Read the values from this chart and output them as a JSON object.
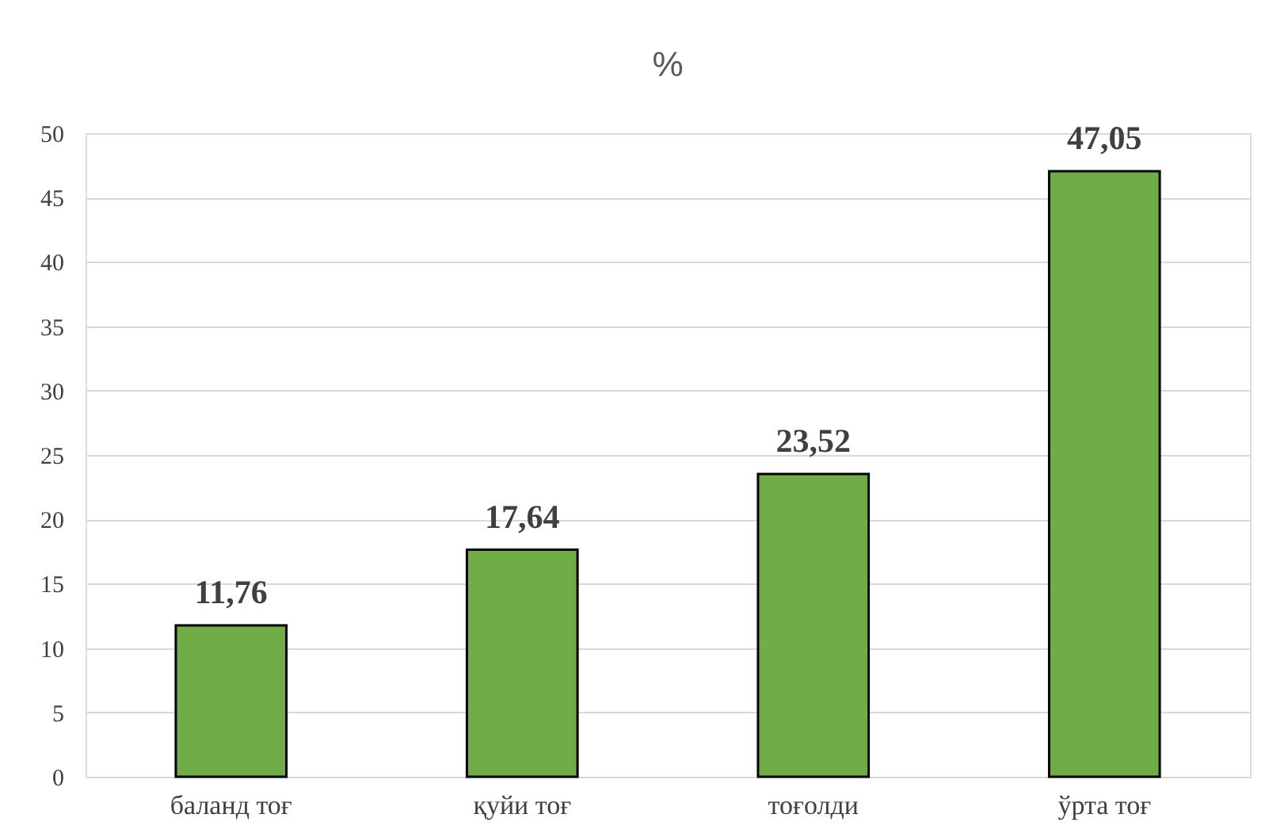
{
  "chart_data": {
    "type": "bar",
    "title": "%",
    "categories": [
      "баланд тоғ",
      "қуйи тоғ",
      "тоғолди",
      "ўрта тоғ"
    ],
    "values": [
      11.76,
      17.64,
      23.52,
      47.05
    ],
    "value_labels": [
      "11,76",
      "17,64",
      "23,52",
      "47,05"
    ],
    "color": "#70ad47",
    "ylim": [
      0,
      50
    ],
    "yticks": [
      0,
      5,
      10,
      15,
      20,
      25,
      30,
      35,
      40,
      45,
      50
    ],
    "grid": "y"
  }
}
